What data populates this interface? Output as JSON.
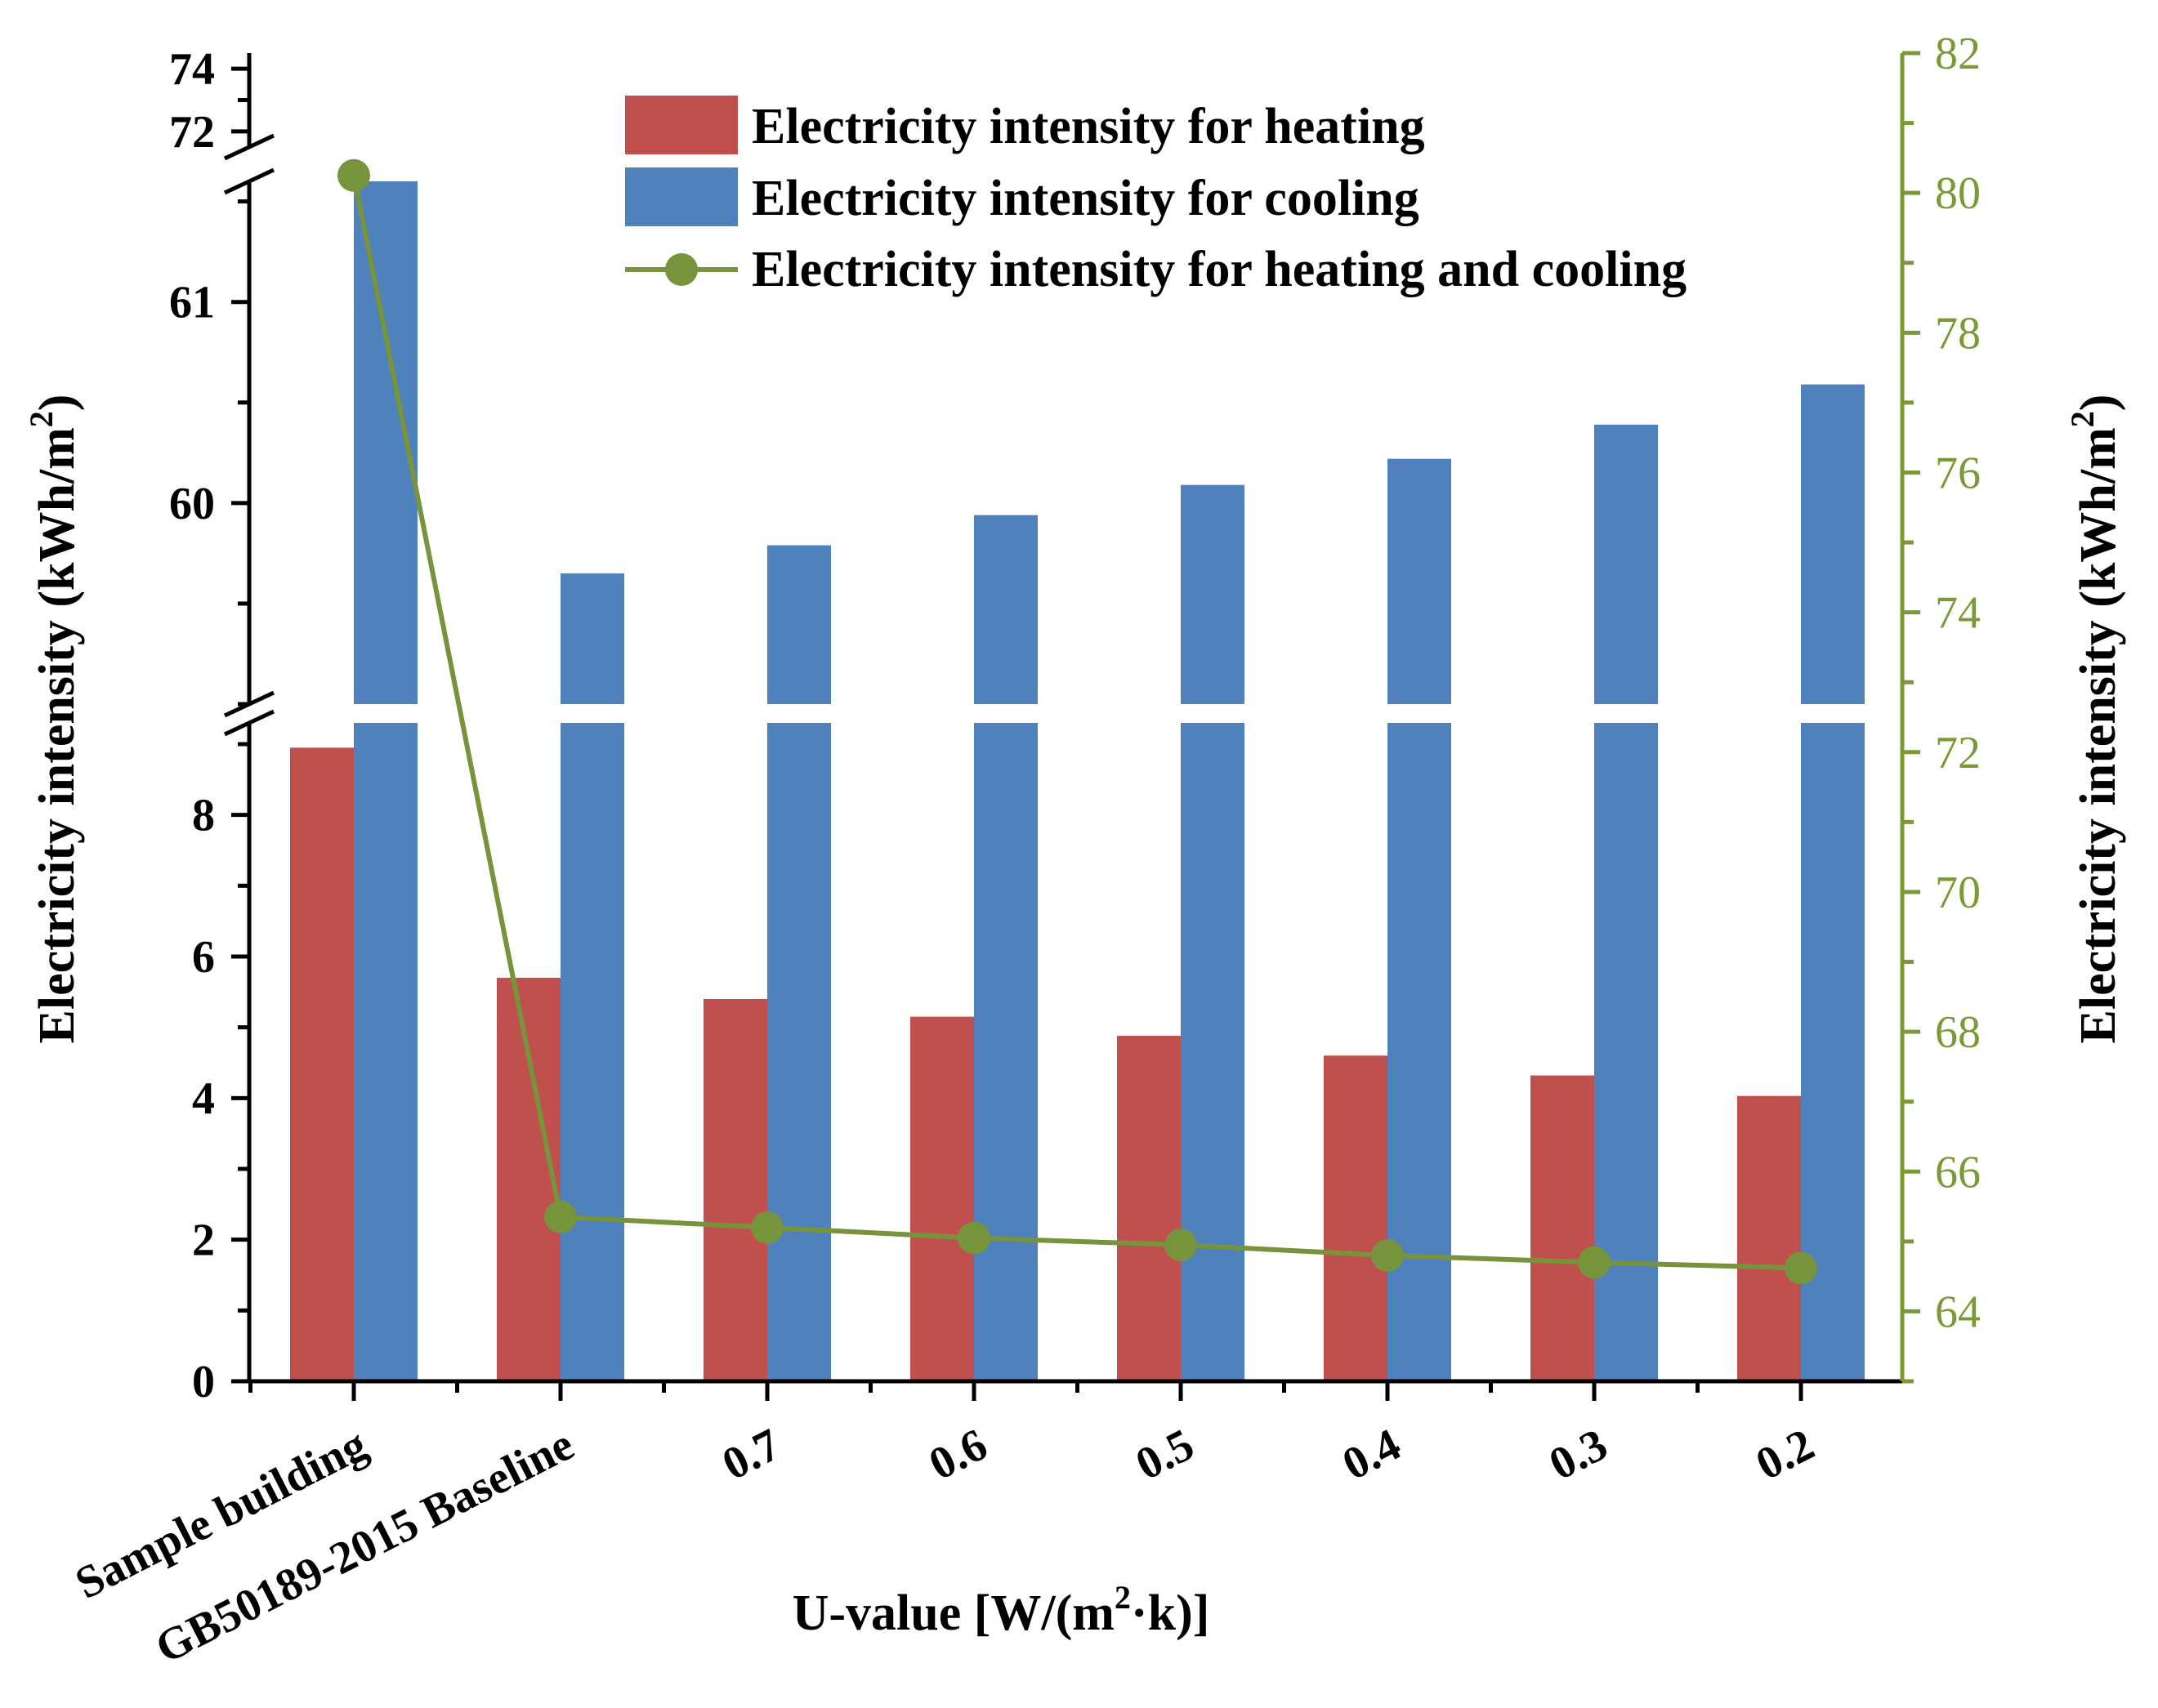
{
  "chart_data": {
    "type": "bar",
    "categories": [
      "Sample building",
      "GB50189-2015 Baseline",
      "0.7",
      "0.6",
      "0.5",
      "0.4",
      "0.3",
      "0.2"
    ],
    "series": [
      {
        "name": "Electricity intensity for heating",
        "axis": "left",
        "kind": "bar",
        "color": "#c0504d",
        "values": [
          8.95,
          5.7,
          5.4,
          5.15,
          4.88,
          4.6,
          4.32,
          4.03
        ]
      },
      {
        "name": "Electricity intensity for cooling",
        "axis": "left",
        "kind": "bar",
        "color": "#4f81bd",
        "values": [
          71.3,
          59.65,
          59.79,
          59.94,
          60.09,
          60.22,
          60.39,
          60.59
        ]
      },
      {
        "name": "Electricity intensity for heating and cooling",
        "axis": "right",
        "kind": "line",
        "color": "#77933c",
        "values": [
          80.25,
          65.35,
          65.2,
          65.05,
          64.95,
          64.8,
          64.7,
          64.62
        ]
      }
    ],
    "xlabel_prefix": "U-value [W/(m",
    "xlabel_sup": "2",
    "xlabel_suffix": "·k)]",
    "ylabel_prefix": "Electricity intensity (kWh/m",
    "ylabel_sup": "2",
    "ylabel_suffix": ")",
    "y_left_segments": [
      {
        "range": [
          0,
          9.3
        ],
        "ticks": [
          "0",
          "2",
          "4",
          "6",
          "8"
        ],
        "minor_step": 1
      },
      {
        "range": [
          59.0,
          61.6
        ],
        "ticks": [
          "60",
          "61"
        ],
        "minor_step": 0.5
      },
      {
        "range": [
          71.5,
          74.5
        ],
        "ticks": [
          "72",
          "74"
        ],
        "minor_step": 1
      }
    ],
    "y_right_range": [
      63,
      82
    ],
    "y_right_ticks": [
      "64",
      "66",
      "68",
      "70",
      "72",
      "74",
      "76",
      "78",
      "80",
      "82"
    ],
    "legend_position": "top-center",
    "colors": {
      "heating": "#c0504d",
      "cooling": "#4f81bd",
      "total": "#77933c",
      "right_axis": "#7a9a36"
    }
  }
}
